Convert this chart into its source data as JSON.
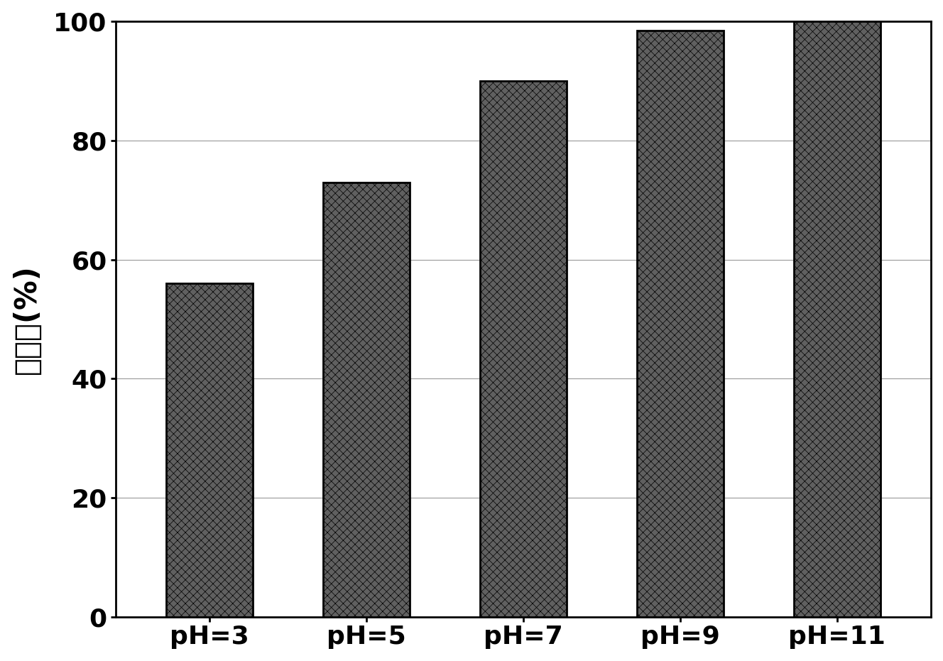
{
  "categories": [
    "pH=3",
    "pH=5",
    "pH=7",
    "pH=9",
    "pH=11"
  ],
  "values": [
    56,
    73,
    90,
    98.5,
    100
  ],
  "ylabel": "脅氧率(%)",
  "ylim": [
    0,
    100
  ],
  "yticks": [
    0,
    20,
    40,
    60,
    80,
    100
  ],
  "bar_facecolor": "#555555",
  "bar_edgecolor": "#000000",
  "background_color": "#ffffff",
  "bar_width": 0.55,
  "ylabel_fontsize": 30,
  "tick_fontsize": 26,
  "grid_color": "#999999",
  "hatch": "xxx"
}
